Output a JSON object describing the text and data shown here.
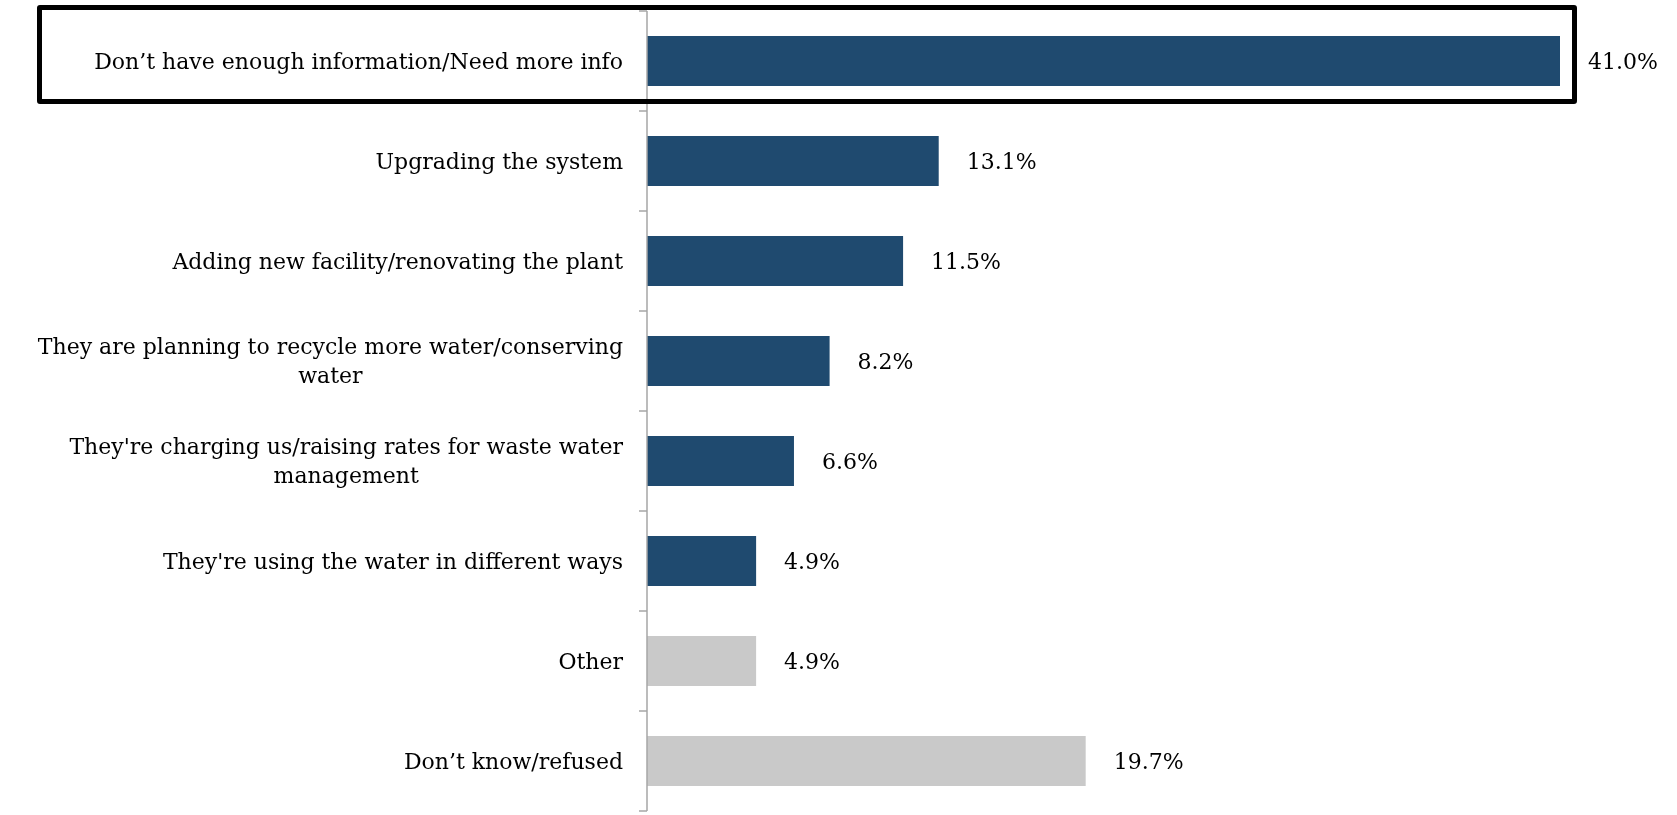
{
  "chart_data": {
    "type": "bar",
    "orientation": "horizontal",
    "categories": [
      "Don’t have enough information/Need more info",
      "Upgrading the system",
      "Adding new facility/renovating the plant",
      "They are planning to recycle more water/conserving water",
      "They're charging us/raising rates for waste water management",
      "They're using the water in different ways",
      "Other",
      "Don’t know/refused"
    ],
    "values": [
      41.0,
      13.1,
      11.5,
      8.2,
      6.6,
      4.9,
      4.9,
      19.7
    ],
    "value_labels": [
      "41.0%",
      "13.1%",
      "11.5%",
      "8.2%",
      "6.6%",
      "4.9%",
      "4.9%",
      "19.7%"
    ],
    "colors": [
      "#1f4a6f",
      "#1f4a6f",
      "#1f4a6f",
      "#1f4a6f",
      "#1f4a6f",
      "#1f4a6f",
      "#c9c9c9",
      "#c9c9c9"
    ]
  }
}
